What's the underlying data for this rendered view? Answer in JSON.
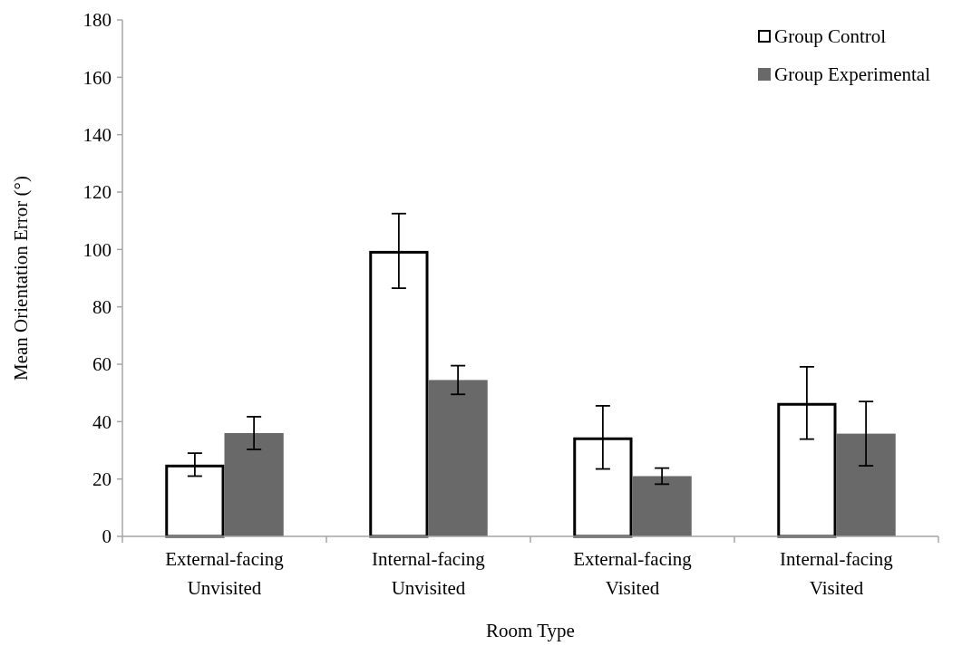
{
  "chart_data": {
    "type": "bar",
    "xlabel": "Room Type",
    "ylabel": "Mean Orientation Error (°)",
    "categories": [
      "External-facing\nUnvisited",
      "Internal-facing\nUnvisited",
      "External-facing\nVisited",
      "Internal-facing\nVisited"
    ],
    "series": [
      {
        "name": "Group Control",
        "color": "#ffffff",
        "values": [
          25,
          99.5,
          34.5,
          46.5
        ],
        "errors": [
          4,
          13,
          11,
          12.6
        ]
      },
      {
        "name": "Group Experimental",
        "color": "#696969",
        "values": [
          36,
          54.5,
          21,
          35.8
        ],
        "errors": [
          5.7,
          5,
          2.8,
          11.2
        ]
      }
    ],
    "ylim": [
      0,
      180
    ],
    "yticks": [
      0,
      20,
      40,
      60,
      80,
      100,
      120,
      140,
      160,
      180
    ],
    "grid": false,
    "legend": "top right"
  }
}
